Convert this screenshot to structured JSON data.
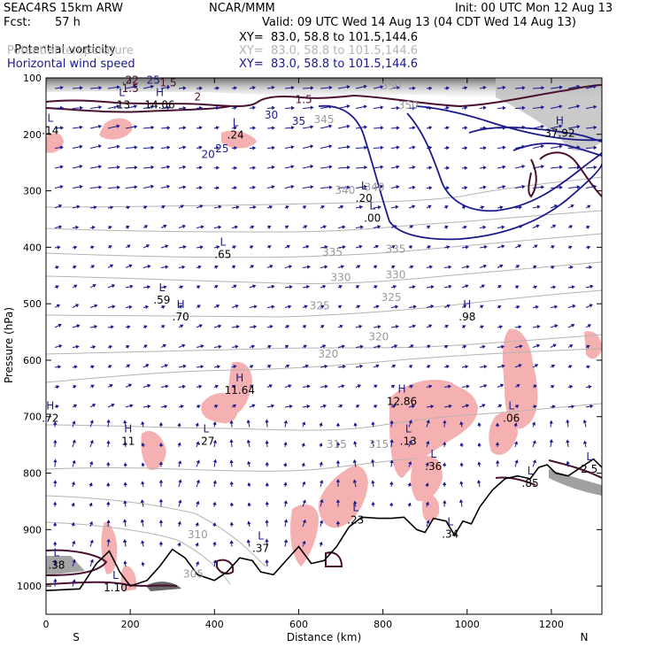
{
  "header": {
    "model": "SEAC4RS 15km ARW",
    "producer": "NCAR/MMM",
    "init": "Init: 00 UTC Mon 12 Aug 13",
    "fcst_label": "Fcst:",
    "fcst_value": "57 h",
    "valid": "Valid: 09 UTC Wed 14 Aug 13 (04 CDT Wed 14 Aug 13)"
  },
  "legend": [
    {
      "name": "Potential vorticity",
      "xy": "XY=  83.0, 58.8 to 101.5,144.6",
      "color": "#000000"
    },
    {
      "name": "Potential temperature",
      "xy": "XY=  83.0, 58.8 to 101.5,144.6",
      "color": "#b4b4b4"
    },
    {
      "name": "Horizontal wind speed",
      "xy": "XY=  83.0, 58.8 to 101.5,144.6",
      "color": "#1a1a8c"
    }
  ],
  "chart_data": {
    "type": "cross-section",
    "xlabel": "Distance (km)",
    "ylabel": "Pressure (hPa)",
    "x_ticks": [
      0,
      200,
      400,
      600,
      800,
      1000,
      1200
    ],
    "y_ticks": [
      100,
      200,
      300,
      400,
      500,
      600,
      700,
      800,
      900,
      1000
    ],
    "xlim": [
      0,
      1320
    ],
    "ylim": [
      1050,
      100
    ],
    "left_end": "S",
    "right_end": "N",
    "theta_labels": [
      {
        "text": "345",
        "x": 660,
        "p": 180
      },
      {
        "text": "340",
        "x": 710,
        "p": 305
      },
      {
        "text": "340",
        "x": 780,
        "p": 300
      },
      {
        "text": "335",
        "x": 680,
        "p": 415
      },
      {
        "text": "335",
        "x": 830,
        "p": 410
      },
      {
        "text": "330",
        "x": 700,
        "p": 460
      },
      {
        "text": "330",
        "x": 830,
        "p": 455
      },
      {
        "text": "325",
        "x": 820,
        "p": 495
      },
      {
        "text": "325",
        "x": 650,
        "p": 510
      },
      {
        "text": "320",
        "x": 790,
        "p": 565
      },
      {
        "text": "320",
        "x": 670,
        "p": 595
      },
      {
        "text": "315",
        "x": 690,
        "p": 755
      },
      {
        "text": "315",
        "x": 790,
        "p": 755
      },
      {
        "text": "310",
        "x": 360,
        "p": 915
      },
      {
        "text": "305",
        "x": 350,
        "p": 985
      },
      {
        "text": "350",
        "x": 820,
        "p": 120
      },
      {
        "text": "350",
        "x": 860,
        "p": 155
      }
    ],
    "wind_labels": [
      {
        "text": "20",
        "x": 385,
        "p": 242
      },
      {
        "text": "25",
        "x": 418,
        "p": 232
      },
      {
        "text": "30",
        "x": 535,
        "p": 172
      },
      {
        "text": "35",
        "x": 600,
        "p": 183
      },
      {
        "text": "25",
        "x": 255,
        "p": 110
      }
    ],
    "pv_labels": [
      {
        "text": "1.5",
        "x": 200,
        "p": 125
      },
      {
        "text": "1.5",
        "x": 290,
        "p": 115
      },
      {
        "text": "2",
        "x": 360,
        "p": 140
      },
      {
        "text": "1.5",
        "x": 612,
        "p": 145
      },
      {
        "text": ".22",
        "x": 200,
        "p": 110
      }
    ],
    "extrema": [
      {
        "type": "L",
        "value": ".14",
        "x": 10,
        "p": 190
      },
      {
        "type": "L",
        "value": ".13",
        "x": 180,
        "p": 145
      },
      {
        "type": "H",
        "value": "14.06",
        "x": 270,
        "p": 145
      },
      {
        "type": "L",
        "value": ".24",
        "x": 450,
        "p": 198
      },
      {
        "type": "H",
        "value": "37.92",
        "x": 1220,
        "p": 195
      },
      {
        "type": "L",
        "value": ".20",
        "x": 755,
        "p": 310
      },
      {
        "type": "L",
        "value": ".00",
        "x": 775,
        "p": 345
      },
      {
        "type": "L",
        "value": ".65",
        "x": 420,
        "p": 410
      },
      {
        "type": "L",
        "value": ".59",
        "x": 275,
        "p": 490
      },
      {
        "type": "H",
        "value": ".70",
        "x": 320,
        "p": 520
      },
      {
        "type": "H",
        "value": ".98",
        "x": 1000,
        "p": 520
      },
      {
        "type": "H",
        "value": "11.64",
        "x": 460,
        "p": 650
      },
      {
        "type": "H",
        "value": "12.86",
        "x": 845,
        "p": 670
      },
      {
        "type": "H",
        "value": ".72",
        "x": 10,
        "p": 700
      },
      {
        "type": "L",
        "value": ".06",
        "x": 1105,
        "p": 700
      },
      {
        "type": "H",
        "value": "11",
        "x": 195,
        "p": 740
      },
      {
        "type": "L",
        "value": ".27",
        "x": 380,
        "p": 740
      },
      {
        "type": "L",
        "value": ".13",
        "x": 860,
        "p": 740
      },
      {
        "type": "L",
        "value": ".36",
        "x": 920,
        "p": 785
      },
      {
        "type": "L",
        "value": ".85",
        "x": 1150,
        "p": 815
      },
      {
        "type": "L",
        "value": "2.5",
        "x": 1290,
        "p": 790
      },
      {
        "type": "L",
        "value": ".23",
        "x": 735,
        "p": 880
      },
      {
        "type": "L",
        "value": ".37",
        "x": 510,
        "p": 930
      },
      {
        "type": "L",
        "value": ".38",
        "x": 25,
        "p": 960
      },
      {
        "type": "L",
        "value": "1.10",
        "x": 165,
        "p": 1000
      },
      {
        "type": "L",
        "value": ".34",
        "x": 960,
        "p": 905
      }
    ],
    "terrain_p": [
      [
        0,
        1008
      ],
      [
        80,
        1005
      ],
      [
        120,
        960
      ],
      [
        150,
        938
      ],
      [
        175,
        975
      ],
      [
        200,
        1000
      ],
      [
        240,
        990
      ],
      [
        270,
        965
      ],
      [
        300,
        935
      ],
      [
        330,
        950
      ],
      [
        360,
        980
      ],
      [
        400,
        990
      ],
      [
        430,
        975
      ],
      [
        460,
        950
      ],
      [
        490,
        955
      ],
      [
        510,
        975
      ],
      [
        540,
        980
      ],
      [
        570,
        955
      ],
      [
        600,
        930
      ],
      [
        630,
        960
      ],
      [
        660,
        955
      ],
      [
        690,
        930
      ],
      [
        720,
        895
      ],
      [
        750,
        878
      ],
      [
        790,
        880
      ],
      [
        820,
        880
      ],
      [
        850,
        878
      ],
      [
        880,
        900
      ],
      [
        900,
        905
      ],
      [
        920,
        880
      ],
      [
        950,
        885
      ],
      [
        970,
        910
      ],
      [
        990,
        885
      ],
      [
        1010,
        890
      ],
      [
        1030,
        860
      ],
      [
        1060,
        830
      ],
      [
        1090,
        810
      ],
      [
        1120,
        805
      ],
      [
        1150,
        810
      ],
      [
        1170,
        790
      ],
      [
        1190,
        785
      ],
      [
        1210,
        800
      ],
      [
        1240,
        805
      ],
      [
        1270,
        790
      ],
      [
        1300,
        775
      ],
      [
        1320,
        790
      ]
    ]
  }
}
